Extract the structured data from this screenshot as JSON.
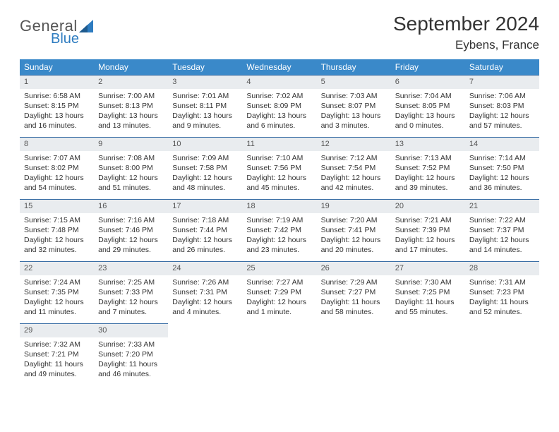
{
  "logo": {
    "text1": "General",
    "text2": "Blue"
  },
  "title": "September 2024",
  "location": "Eybens, France",
  "weekday_labels": [
    "Sunday",
    "Monday",
    "Tuesday",
    "Wednesday",
    "Thursday",
    "Friday",
    "Saturday"
  ],
  "colors": {
    "header_bg": "#3a89c9",
    "header_text": "#ffffff",
    "daynum_bg": "#e9ecef",
    "daynum_border": "#3a6ea5",
    "body_text": "#333333",
    "logo_blue": "#2e7cc0",
    "logo_gray": "#555555"
  },
  "weeks": [
    [
      {
        "n": "1",
        "sunrise": "Sunrise: 6:58 AM",
        "sunset": "Sunset: 8:15 PM",
        "daylight": "Daylight: 13 hours and 16 minutes."
      },
      {
        "n": "2",
        "sunrise": "Sunrise: 7:00 AM",
        "sunset": "Sunset: 8:13 PM",
        "daylight": "Daylight: 13 hours and 13 minutes."
      },
      {
        "n": "3",
        "sunrise": "Sunrise: 7:01 AM",
        "sunset": "Sunset: 8:11 PM",
        "daylight": "Daylight: 13 hours and 9 minutes."
      },
      {
        "n": "4",
        "sunrise": "Sunrise: 7:02 AM",
        "sunset": "Sunset: 8:09 PM",
        "daylight": "Daylight: 13 hours and 6 minutes."
      },
      {
        "n": "5",
        "sunrise": "Sunrise: 7:03 AM",
        "sunset": "Sunset: 8:07 PM",
        "daylight": "Daylight: 13 hours and 3 minutes."
      },
      {
        "n": "6",
        "sunrise": "Sunrise: 7:04 AM",
        "sunset": "Sunset: 8:05 PM",
        "daylight": "Daylight: 13 hours and 0 minutes."
      },
      {
        "n": "7",
        "sunrise": "Sunrise: 7:06 AM",
        "sunset": "Sunset: 8:03 PM",
        "daylight": "Daylight: 12 hours and 57 minutes."
      }
    ],
    [
      {
        "n": "8",
        "sunrise": "Sunrise: 7:07 AM",
        "sunset": "Sunset: 8:02 PM",
        "daylight": "Daylight: 12 hours and 54 minutes."
      },
      {
        "n": "9",
        "sunrise": "Sunrise: 7:08 AM",
        "sunset": "Sunset: 8:00 PM",
        "daylight": "Daylight: 12 hours and 51 minutes."
      },
      {
        "n": "10",
        "sunrise": "Sunrise: 7:09 AM",
        "sunset": "Sunset: 7:58 PM",
        "daylight": "Daylight: 12 hours and 48 minutes."
      },
      {
        "n": "11",
        "sunrise": "Sunrise: 7:10 AM",
        "sunset": "Sunset: 7:56 PM",
        "daylight": "Daylight: 12 hours and 45 minutes."
      },
      {
        "n": "12",
        "sunrise": "Sunrise: 7:12 AM",
        "sunset": "Sunset: 7:54 PM",
        "daylight": "Daylight: 12 hours and 42 minutes."
      },
      {
        "n": "13",
        "sunrise": "Sunrise: 7:13 AM",
        "sunset": "Sunset: 7:52 PM",
        "daylight": "Daylight: 12 hours and 39 minutes."
      },
      {
        "n": "14",
        "sunrise": "Sunrise: 7:14 AM",
        "sunset": "Sunset: 7:50 PM",
        "daylight": "Daylight: 12 hours and 36 minutes."
      }
    ],
    [
      {
        "n": "15",
        "sunrise": "Sunrise: 7:15 AM",
        "sunset": "Sunset: 7:48 PM",
        "daylight": "Daylight: 12 hours and 32 minutes."
      },
      {
        "n": "16",
        "sunrise": "Sunrise: 7:16 AM",
        "sunset": "Sunset: 7:46 PM",
        "daylight": "Daylight: 12 hours and 29 minutes."
      },
      {
        "n": "17",
        "sunrise": "Sunrise: 7:18 AM",
        "sunset": "Sunset: 7:44 PM",
        "daylight": "Daylight: 12 hours and 26 minutes."
      },
      {
        "n": "18",
        "sunrise": "Sunrise: 7:19 AM",
        "sunset": "Sunset: 7:42 PM",
        "daylight": "Daylight: 12 hours and 23 minutes."
      },
      {
        "n": "19",
        "sunrise": "Sunrise: 7:20 AM",
        "sunset": "Sunset: 7:41 PM",
        "daylight": "Daylight: 12 hours and 20 minutes."
      },
      {
        "n": "20",
        "sunrise": "Sunrise: 7:21 AM",
        "sunset": "Sunset: 7:39 PM",
        "daylight": "Daylight: 12 hours and 17 minutes."
      },
      {
        "n": "21",
        "sunrise": "Sunrise: 7:22 AM",
        "sunset": "Sunset: 7:37 PM",
        "daylight": "Daylight: 12 hours and 14 minutes."
      }
    ],
    [
      {
        "n": "22",
        "sunrise": "Sunrise: 7:24 AM",
        "sunset": "Sunset: 7:35 PM",
        "daylight": "Daylight: 12 hours and 11 minutes."
      },
      {
        "n": "23",
        "sunrise": "Sunrise: 7:25 AM",
        "sunset": "Sunset: 7:33 PM",
        "daylight": "Daylight: 12 hours and 7 minutes."
      },
      {
        "n": "24",
        "sunrise": "Sunrise: 7:26 AM",
        "sunset": "Sunset: 7:31 PM",
        "daylight": "Daylight: 12 hours and 4 minutes."
      },
      {
        "n": "25",
        "sunrise": "Sunrise: 7:27 AM",
        "sunset": "Sunset: 7:29 PM",
        "daylight": "Daylight: 12 hours and 1 minute."
      },
      {
        "n": "26",
        "sunrise": "Sunrise: 7:29 AM",
        "sunset": "Sunset: 7:27 PM",
        "daylight": "Daylight: 11 hours and 58 minutes."
      },
      {
        "n": "27",
        "sunrise": "Sunrise: 7:30 AM",
        "sunset": "Sunset: 7:25 PM",
        "daylight": "Daylight: 11 hours and 55 minutes."
      },
      {
        "n": "28",
        "sunrise": "Sunrise: 7:31 AM",
        "sunset": "Sunset: 7:23 PM",
        "daylight": "Daylight: 11 hours and 52 minutes."
      }
    ],
    [
      {
        "n": "29",
        "sunrise": "Sunrise: 7:32 AM",
        "sunset": "Sunset: 7:21 PM",
        "daylight": "Daylight: 11 hours and 49 minutes."
      },
      {
        "n": "30",
        "sunrise": "Sunrise: 7:33 AM",
        "sunset": "Sunset: 7:20 PM",
        "daylight": "Daylight: 11 hours and 46 minutes."
      },
      null,
      null,
      null,
      null,
      null
    ]
  ]
}
